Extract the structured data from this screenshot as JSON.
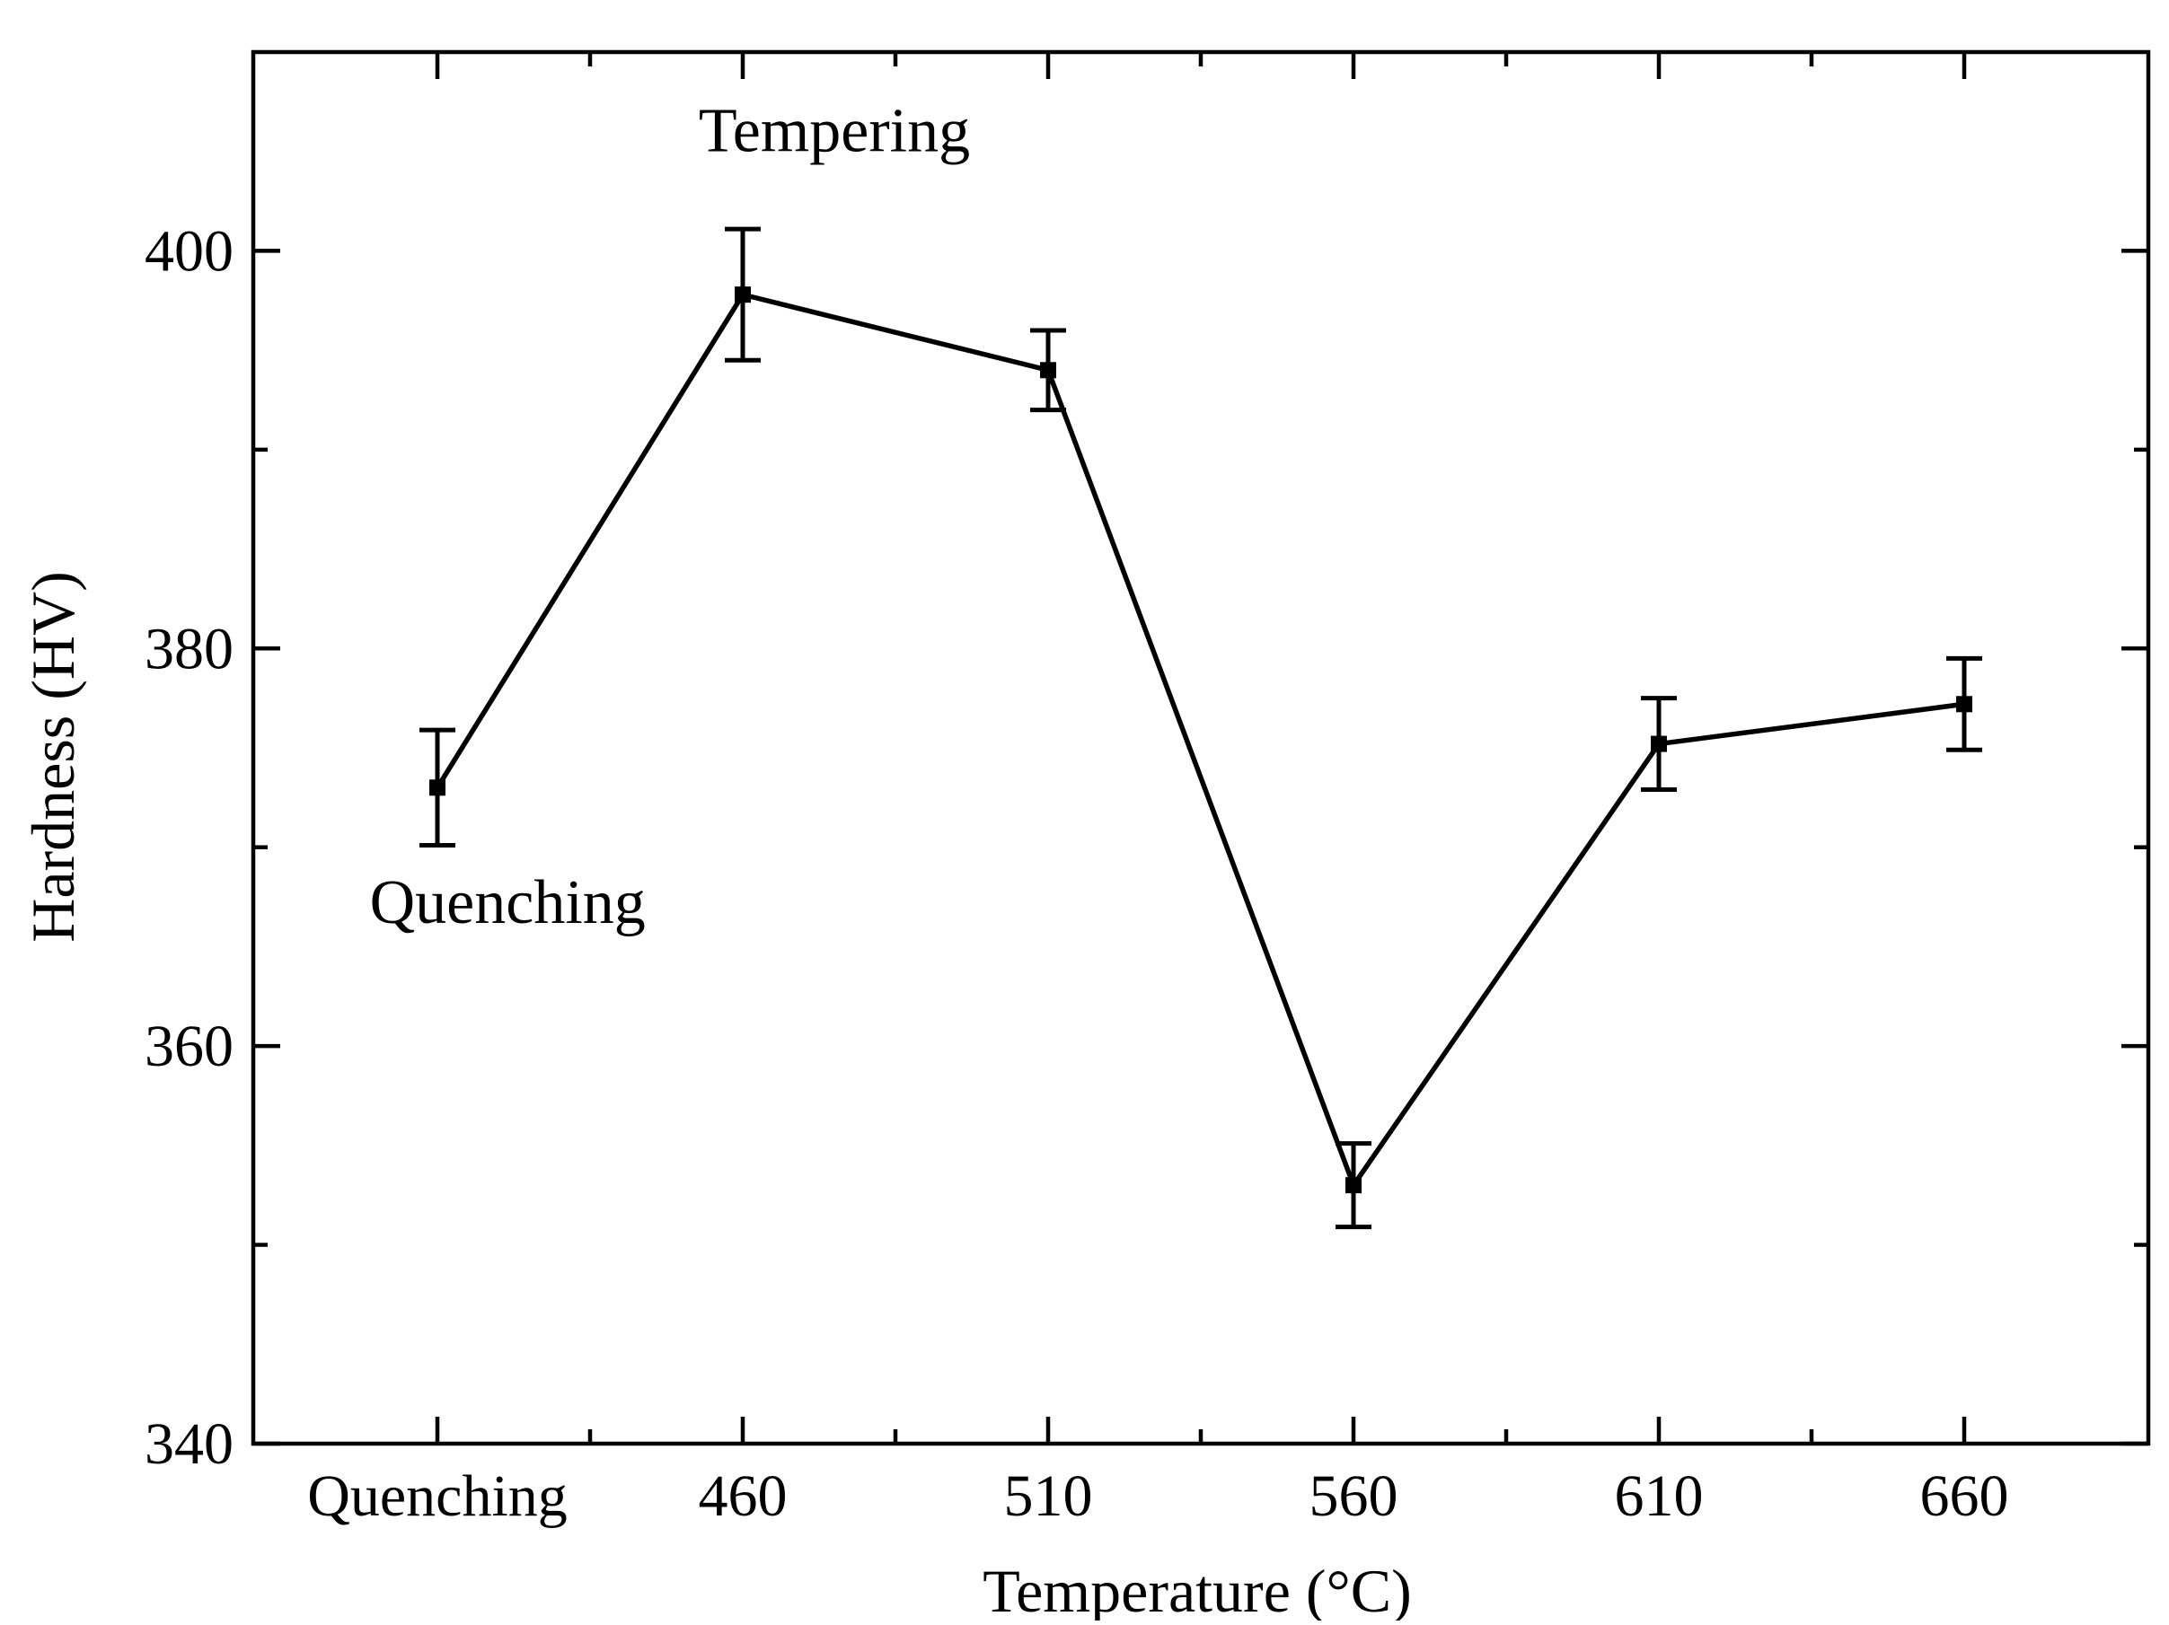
{
  "chart_data": {
    "type": "line",
    "title": "",
    "xlabel": "Temperature (°C)",
    "ylabel": "Hardness (HV)",
    "categories": [
      "Quenching",
      "460",
      "510",
      "560",
      "610",
      "660"
    ],
    "series": [
      {
        "name": "Hardness",
        "values": [
          373.0,
          397.8,
          394.0,
          353.0,
          375.2,
          377.2
        ],
        "errors": [
          2.9,
          3.3,
          2.0,
          2.1,
          2.3,
          2.3
        ]
      }
    ],
    "ylim": [
      340,
      410
    ],
    "yticks": [
      340,
      360,
      380,
      400
    ],
    "yminor_step": 10,
    "annotations": [
      {
        "text": "Tempering",
        "x_index": 1.3,
        "y": 405
      },
      {
        "text": "Quenching",
        "x_index": 0.23,
        "y": 366.2
      }
    ],
    "colors": {
      "line": "#000000",
      "marker": "#000000",
      "axis": "#000000"
    }
  }
}
